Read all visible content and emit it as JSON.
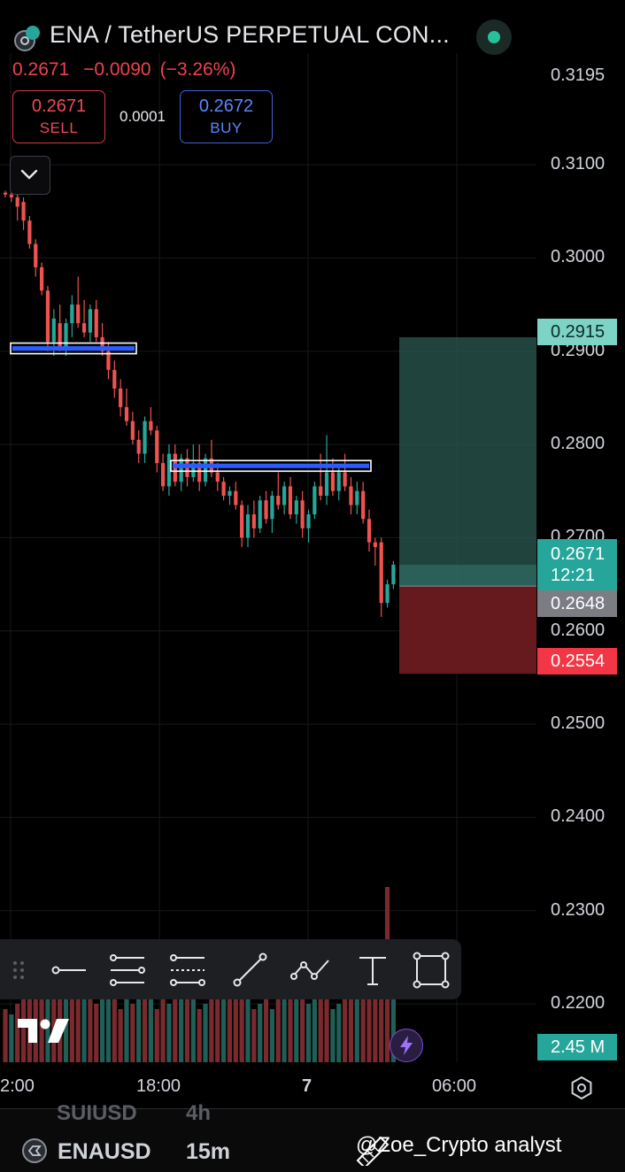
{
  "header": {
    "title": "ENA / TetherUS PERPETUAL CON...",
    "last_price": "0.2671",
    "change": "−0.0090",
    "change_pct": "(−3.26%)"
  },
  "trade": {
    "sell_price": "0.2671",
    "sell_label": "SELL",
    "spread": "0.0001",
    "buy_price": "0.2672",
    "buy_label": "BUY"
  },
  "price_axis": {
    "labels": [
      "0.3195",
      "0.3100",
      "0.3000",
      "0.2900",
      "0.2800",
      "0.2700",
      "0.2600",
      "0.2500",
      "0.2400",
      "0.2300",
      "0.2200"
    ]
  },
  "badges": {
    "target": "0.2915",
    "current": "0.2671",
    "countdown": "12:21",
    "entry": "0.2648",
    "stop": "0.2554",
    "volume": "2.45 M"
  },
  "time_axis": {
    "labels": [
      "2:00",
      "18:00",
      "7",
      "06:00"
    ]
  },
  "colors": {
    "up": "#26a69a",
    "down": "#ef5350",
    "target_zone": "#2b5a52",
    "stop_zone": "#6b1b20",
    "zone_line": "#2b5cff"
  },
  "toolbar": {
    "tools": [
      "trend-line",
      "parallel-channel",
      "fib-retracement",
      "ray",
      "path",
      "text",
      "rectangle"
    ]
  },
  "bottom": {
    "prev_symbol": "SUIUSD",
    "prev_interval": "4h",
    "symbol": "ENAUSD",
    "interval": "15m"
  },
  "watermark": "@Zoe_Crypto analyst",
  "chart_data": {
    "type": "candlestick",
    "symbol": "ENA / TetherUS PERPETUAL",
    "ylim": [
      0.2145,
      0.3195
    ],
    "current_price": 0.2671,
    "position": {
      "entry": 0.2648,
      "target": 0.2915,
      "stop": 0.2554
    },
    "zones": [
      0.2903,
      0.2777
    ],
    "volume_last": "2.45 M",
    "candles": [
      [
        0.307,
        0.3072,
        0.3065,
        0.3068
      ],
      [
        0.3068,
        0.3078,
        0.306,
        0.3065
      ],
      [
        0.3065,
        0.307,
        0.304,
        0.3055
      ],
      [
        0.306,
        0.3065,
        0.303,
        0.304
      ],
      [
        0.304,
        0.3045,
        0.301,
        0.3015
      ],
      [
        0.3015,
        0.302,
        0.298,
        0.299
      ],
      [
        0.299,
        0.2995,
        0.296,
        0.2965
      ],
      [
        0.2965,
        0.297,
        0.29,
        0.291
      ],
      [
        0.291,
        0.2945,
        0.2895,
        0.2935
      ],
      [
        0.293,
        0.295,
        0.29,
        0.2905
      ],
      [
        0.2905,
        0.2935,
        0.2895,
        0.293
      ],
      [
        0.293,
        0.296,
        0.2915,
        0.295
      ],
      [
        0.295,
        0.298,
        0.2925,
        0.293
      ],
      [
        0.293,
        0.2955,
        0.2915,
        0.292
      ],
      [
        0.292,
        0.295,
        0.291,
        0.2945
      ],
      [
        0.2945,
        0.2955,
        0.291,
        0.2915
      ],
      [
        0.2915,
        0.293,
        0.2895,
        0.29
      ],
      [
        0.29,
        0.291,
        0.287,
        0.288
      ],
      [
        0.288,
        0.289,
        0.285,
        0.286
      ],
      [
        0.286,
        0.287,
        0.283,
        0.284
      ],
      [
        0.284,
        0.286,
        0.282,
        0.2825
      ],
      [
        0.2825,
        0.2835,
        0.28,
        0.2805
      ],
      [
        0.2805,
        0.2815,
        0.278,
        0.279
      ],
      [
        0.279,
        0.283,
        0.278,
        0.2825
      ],
      [
        0.2825,
        0.284,
        0.281,
        0.2815
      ],
      [
        0.2815,
        0.282,
        0.277,
        0.278
      ],
      [
        0.278,
        0.279,
        0.275,
        0.2755
      ],
      [
        0.2755,
        0.28,
        0.2745,
        0.279
      ],
      [
        0.279,
        0.28,
        0.2755,
        0.276
      ],
      [
        0.276,
        0.279,
        0.275,
        0.2785
      ],
      [
        0.2785,
        0.2795,
        0.2755,
        0.2765
      ],
      [
        0.2765,
        0.28,
        0.276,
        0.278
      ],
      [
        0.278,
        0.28,
        0.275,
        0.276
      ],
      [
        0.276,
        0.279,
        0.2755,
        0.2785
      ],
      [
        0.2785,
        0.2805,
        0.2765,
        0.277
      ],
      [
        0.277,
        0.278,
        0.275,
        0.276
      ],
      [
        0.276,
        0.2765,
        0.274,
        0.2745
      ],
      [
        0.2745,
        0.2755,
        0.2735,
        0.275
      ],
      [
        0.275,
        0.276,
        0.273,
        0.2735
      ],
      [
        0.2735,
        0.274,
        0.269,
        0.27
      ],
      [
        0.27,
        0.2735,
        0.269,
        0.2725
      ],
      [
        0.2725,
        0.274,
        0.27,
        0.271
      ],
      [
        0.271,
        0.2745,
        0.2705,
        0.274
      ],
      [
        0.274,
        0.275,
        0.2715,
        0.272
      ],
      [
        0.272,
        0.275,
        0.2705,
        0.2745
      ],
      [
        0.2745,
        0.277,
        0.273,
        0.2735
      ],
      [
        0.2735,
        0.276,
        0.2725,
        0.2755
      ],
      [
        0.2755,
        0.2765,
        0.272,
        0.2725
      ],
      [
        0.2725,
        0.2745,
        0.2715,
        0.274
      ],
      [
        0.274,
        0.275,
        0.27,
        0.271
      ],
      [
        0.271,
        0.273,
        0.2695,
        0.2725
      ],
      [
        0.2725,
        0.276,
        0.272,
        0.2755
      ],
      [
        0.2755,
        0.279,
        0.274,
        0.2745
      ],
      [
        0.2745,
        0.281,
        0.2735,
        0.277
      ],
      [
        0.277,
        0.2785,
        0.2745,
        0.275
      ],
      [
        0.275,
        0.2775,
        0.274,
        0.277
      ],
      [
        0.277,
        0.279,
        0.275,
        0.2755
      ],
      [
        0.2755,
        0.2765,
        0.2725,
        0.2735
      ],
      [
        0.2735,
        0.276,
        0.2725,
        0.275
      ],
      [
        0.275,
        0.276,
        0.2715,
        0.272
      ],
      [
        0.272,
        0.273,
        0.2685,
        0.2695
      ],
      [
        0.2695,
        0.27,
        0.267,
        0.269
      ],
      [
        0.2695,
        0.27,
        0.2615,
        0.263
      ],
      [
        0.263,
        0.2655,
        0.2625,
        0.265
      ],
      [
        0.265,
        0.2675,
        0.2645,
        0.2671
      ]
    ],
    "volume": [
      20,
      18,
      22,
      26,
      30,
      28,
      34,
      33,
      30,
      40,
      28,
      24,
      26,
      30,
      28,
      22,
      30,
      36,
      24,
      20,
      26,
      22,
      34,
      33,
      27,
      20,
      24,
      22,
      30,
      26,
      24,
      28,
      20,
      22,
      26,
      30,
      24,
      32,
      38,
      30,
      24,
      20,
      22,
      26,
      20,
      24,
      28,
      26,
      24,
      30,
      22,
      26,
      30,
      24,
      20,
      22,
      28,
      26,
      24,
      30,
      35,
      37,
      40,
      66,
      38
    ],
    "volume_dir": [
      0,
      1,
      0,
      0,
      0,
      0,
      0,
      1,
      0,
      0,
      1,
      0,
      0,
      1,
      0,
      0,
      1,
      1,
      0,
      0,
      1,
      0,
      1,
      0,
      1,
      0,
      0,
      1,
      0,
      1,
      0,
      1,
      0,
      1,
      0,
      0,
      1,
      0,
      0,
      0,
      1,
      0,
      1,
      0,
      1,
      0,
      1,
      0,
      1,
      0,
      1,
      1,
      0,
      0,
      1,
      1,
      0,
      0,
      1,
      0,
      0,
      0,
      0,
      0,
      1
    ],
    "volume_max": 100
  }
}
